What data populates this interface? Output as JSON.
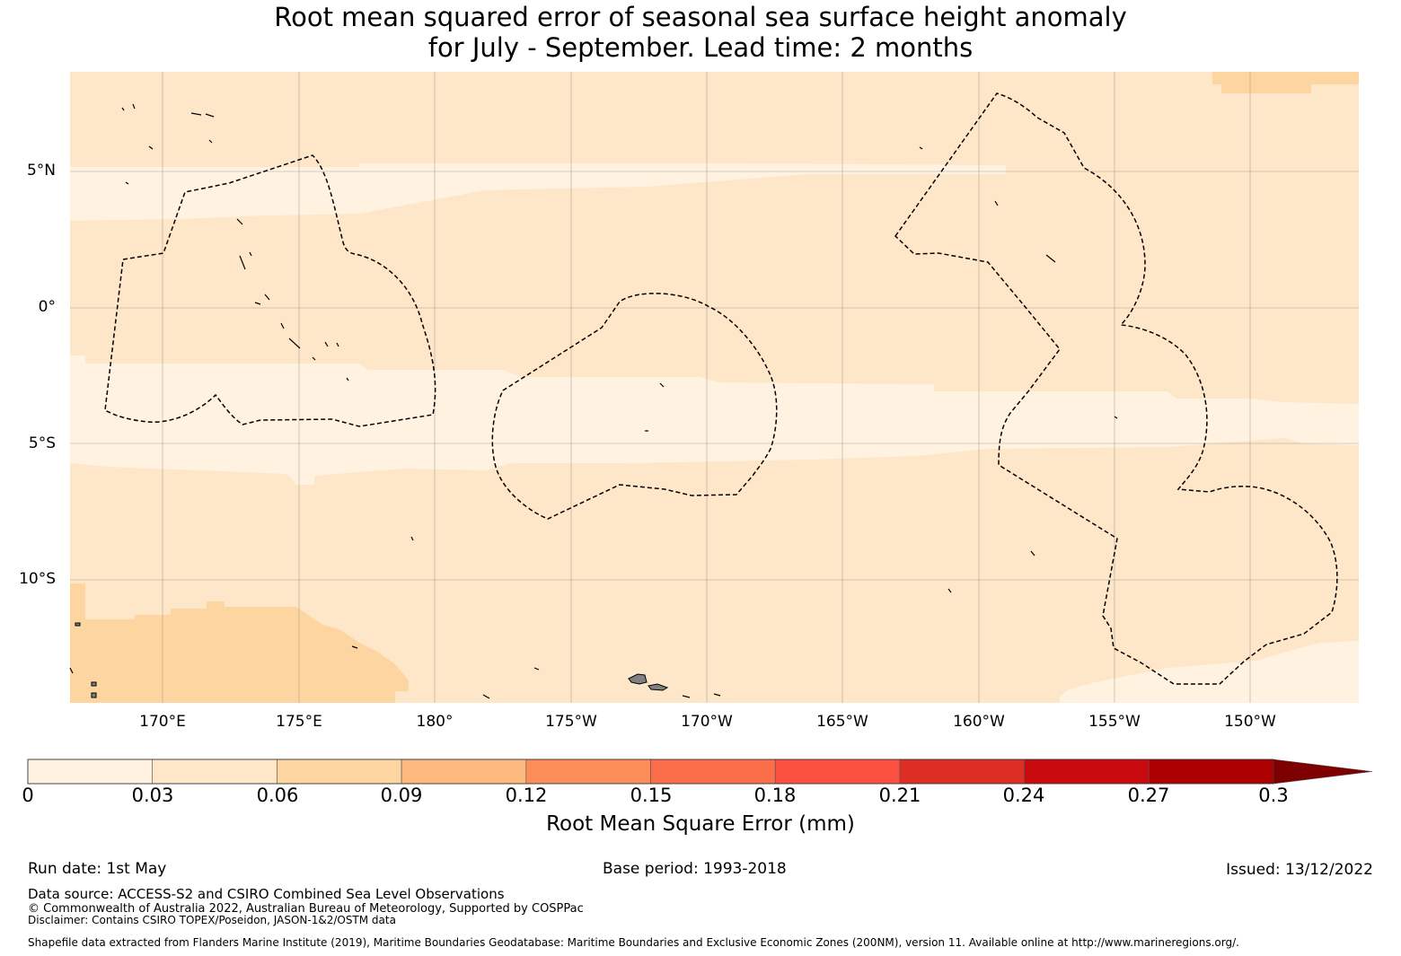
{
  "title": {
    "line1": "Root mean squared error of seasonal sea surface height anomaly",
    "line2": "for July - September. Lead time: 2 months"
  },
  "map": {
    "lat_labels": [
      "5°N",
      "0°",
      "5°S",
      "10°S"
    ],
    "lon_labels": [
      "170°E",
      "175°E",
      "180°",
      "175°W",
      "170°W",
      "165°W",
      "160°W",
      "155°W",
      "150°W"
    ],
    "colors": {
      "band_0_003": "#fff2e0",
      "band_003_006": "#fee6c9",
      "band_006_009": "#fdd5a0",
      "land": "#808080",
      "eez_line": "#000000"
    }
  },
  "colorbar": {
    "ticks": [
      "0",
      "0.03",
      "0.06",
      "0.09",
      "0.12",
      "0.15",
      "0.18",
      "0.21",
      "0.24",
      "0.27",
      "0.3"
    ],
    "colors": [
      "#fff2e0",
      "#fee6c9",
      "#fdd5a0",
      "#fdb97e",
      "#fc8d59",
      "#fc6e4a",
      "#fb5040",
      "#dc2e22",
      "#c90a0f",
      "#ad0000",
      "#7f0000"
    ],
    "label": "Root Mean Square Error (mm)"
  },
  "footer": {
    "run_date": "Run date: 1st May",
    "base_period": "Base period: 1993-2018",
    "issued": "Issued: 13/12/2022",
    "data_source": "Data source: ACCESS-S2 and CSIRO Combined Sea Level Observations",
    "copyright": "© Commonwealth of Australia 2022, Australian Bureau of Meteorology, Supported by COSPPac",
    "disclaimer": "Disclaimer: Contains CSIRO TOPEX/Poseidon, JASON-1&2/OSTM data",
    "shapefile": "Shapefile data extracted from Flanders Marine Institute (2019), Maritime Boundaries Geodatabase: Maritime Boundaries and Exclusive Economic Zones (200NM), version 11. Available online at http://www.marineregions.org/."
  }
}
